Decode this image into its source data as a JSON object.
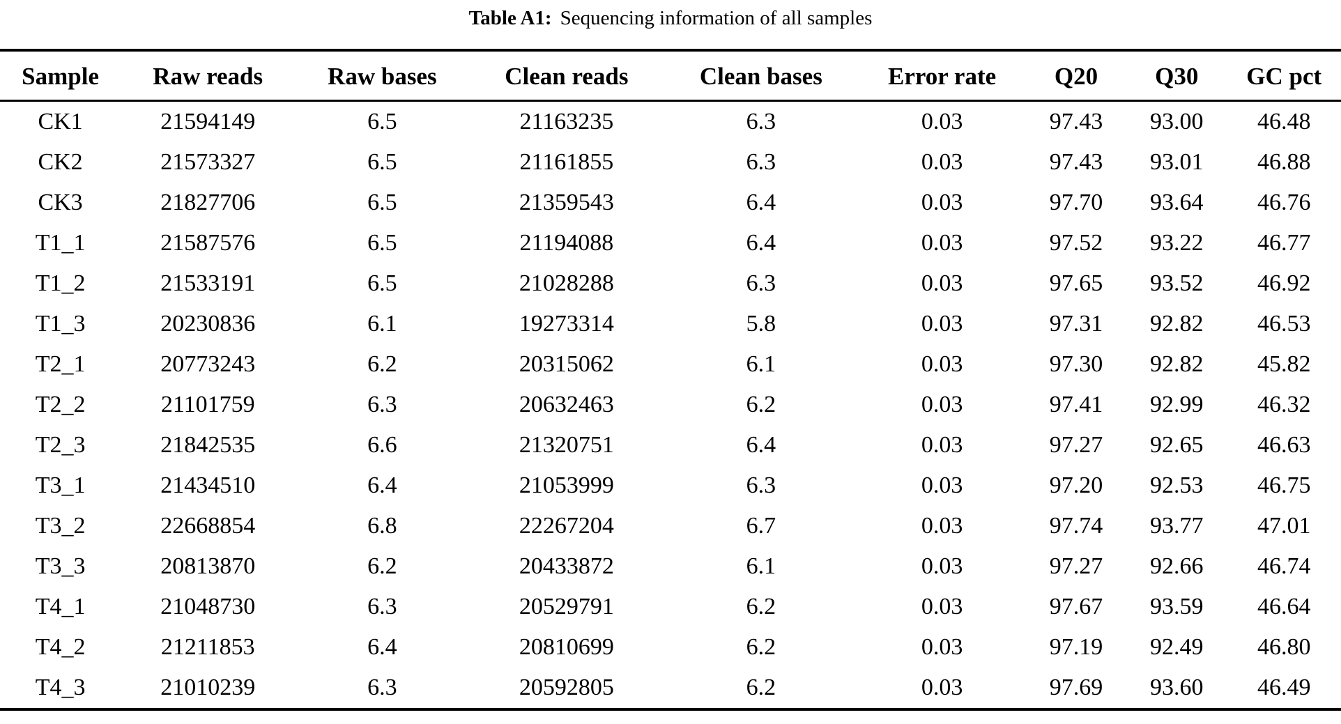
{
  "page": {
    "background_color": "#ffffff",
    "text_color": "#000000"
  },
  "table": {
    "label": "Table A1:",
    "caption": "Sequencing information of all samples",
    "columns": [
      "Sample",
      "Raw reads",
      "Raw bases",
      "Clean reads",
      "Clean bases",
      "Error rate",
      "Q20",
      "Q30",
      "GC pct"
    ],
    "rows": [
      [
        "CK1",
        "21594149",
        "6.5",
        "21163235",
        "6.3",
        "0.03",
        "97.43",
        "93.00",
        "46.48"
      ],
      [
        "CK2",
        "21573327",
        "6.5",
        "21161855",
        "6.3",
        "0.03",
        "97.43",
        "93.01",
        "46.88"
      ],
      [
        "CK3",
        "21827706",
        "6.5",
        "21359543",
        "6.4",
        "0.03",
        "97.70",
        "93.64",
        "46.76"
      ],
      [
        "T1_1",
        "21587576",
        "6.5",
        "21194088",
        "6.4",
        "0.03",
        "97.52",
        "93.22",
        "46.77"
      ],
      [
        "T1_2",
        "21533191",
        "6.5",
        "21028288",
        "6.3",
        "0.03",
        "97.65",
        "93.52",
        "46.92"
      ],
      [
        "T1_3",
        "20230836",
        "6.1",
        "19273314",
        "5.8",
        "0.03",
        "97.31",
        "92.82",
        "46.53"
      ],
      [
        "T2_1",
        "20773243",
        "6.2",
        "20315062",
        "6.1",
        "0.03",
        "97.30",
        "92.82",
        "45.82"
      ],
      [
        "T2_2",
        "21101759",
        "6.3",
        "20632463",
        "6.2",
        "0.03",
        "97.41",
        "92.99",
        "46.32"
      ],
      [
        "T2_3",
        "21842535",
        "6.6",
        "21320751",
        "6.4",
        "0.03",
        "97.27",
        "92.65",
        "46.63"
      ],
      [
        "T3_1",
        "21434510",
        "6.4",
        "21053999",
        "6.3",
        "0.03",
        "97.20",
        "92.53",
        "46.75"
      ],
      [
        "T3_2",
        "22668854",
        "6.8",
        "22267204",
        "6.7",
        "0.03",
        "97.74",
        "93.77",
        "47.01"
      ],
      [
        "T3_3",
        "20813870",
        "6.2",
        "20433872",
        "6.1",
        "0.03",
        "97.27",
        "92.66",
        "46.74"
      ],
      [
        "T4_1",
        "21048730",
        "6.3",
        "20529791",
        "6.2",
        "0.03",
        "97.67",
        "93.59",
        "46.64"
      ],
      [
        "T4_2",
        "21211853",
        "6.4",
        "20810699",
        "6.2",
        "0.03",
        "97.19",
        "92.49",
        "46.80"
      ],
      [
        "T4_3",
        "21010239",
        "6.3",
        "20592805",
        "6.2",
        "0.03",
        "97.69",
        "93.60",
        "46.49"
      ]
    ],
    "column_widths_pct": [
      9,
      13,
      13,
      14.5,
      14.5,
      12.5,
      7.5,
      7.5,
      8.5
    ]
  }
}
